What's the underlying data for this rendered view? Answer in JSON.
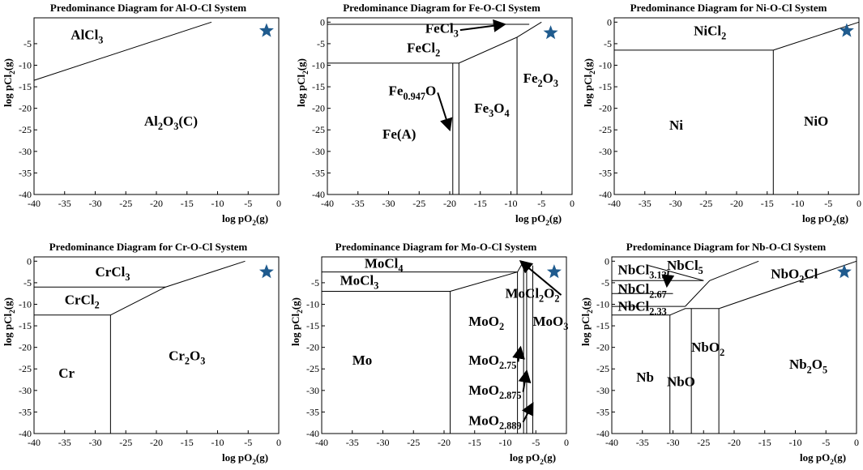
{
  "chart_data": [
    {
      "type": "predominance",
      "title": "Predominance Diagram for Al-O-Cl System",
      "xlabel": [
        "log pO",
        "2",
        "(g)"
      ],
      "ylabel": [
        "log pCl",
        "2",
        "(g)"
      ],
      "xlim": [
        -40,
        0
      ],
      "ylim": [
        -40,
        1
      ],
      "xticks": [
        -40,
        -35,
        -30,
        -25,
        -20,
        -15,
        -10,
        -5,
        0
      ],
      "yticks": [
        -5,
        -10,
        -15,
        -20,
        -25,
        -30,
        -35,
        -40
      ],
      "color": "#000000",
      "star": {
        "x": -2,
        "y": -2,
        "color": "#1f5b8e"
      },
      "boundaries": [
        {
          "x": [
            -40,
            -11
          ],
          "values": [
            -13.5,
            0
          ]
        }
      ],
      "labels": [
        {
          "text": [
            "AlCl",
            "3"
          ],
          "x": -34,
          "y": -4
        },
        {
          "text": [
            "Al",
            "2",
            "O",
            "3",
            "(C)"
          ],
          "x": -22,
          "y": -24
        }
      ]
    },
    {
      "type": "predominance",
      "title": "Predominance Diagram for Fe-O-Cl System",
      "xlabel": [
        "log pO",
        "2",
        "(g)"
      ],
      "ylabel": [
        "log pCl",
        "2",
        "(g)"
      ],
      "xlim": [
        -40,
        0
      ],
      "ylim": [
        -40,
        1
      ],
      "xticks": [
        -40,
        -35,
        -30,
        -25,
        -20,
        -15,
        -10,
        -5,
        0
      ],
      "yticks": [
        0,
        -5,
        -10,
        -15,
        -20,
        -25,
        -30,
        -35,
        -40
      ],
      "color": "#000000",
      "star": {
        "x": -3.5,
        "y": -2.5,
        "color": "#1f5b8e"
      },
      "boundaries": [
        {
          "x": [
            -40,
            -7
          ],
          "values": [
            -0.5,
            -0.5
          ]
        },
        {
          "x": [
            -40,
            -19.5
          ],
          "values": [
            -9.5,
            -9.5
          ]
        },
        {
          "x": [
            -19.5,
            -19.5
          ],
          "values": [
            -9.5,
            -40
          ]
        },
        {
          "x": [
            -19.5,
            -18.5,
            -9,
            -5
          ],
          "values": [
            -9.5,
            -9.5,
            -3.5,
            0
          ]
        },
        {
          "x": [
            -18.5,
            -18.5
          ],
          "values": [
            -9.5,
            -40
          ]
        },
        {
          "x": [
            -9,
            -9
          ],
          "values": [
            -3.5,
            -40
          ]
        }
      ],
      "labels": [
        {
          "text": [
            "FeCl",
            "3"
          ],
          "x": -24,
          "y": -2.5,
          "arrow": [
            -11,
            -0.5
          ]
        },
        {
          "text": [
            "FeCl",
            "2"
          ],
          "x": -27,
          "y": -7
        },
        {
          "text": [
            "Fe",
            "0.947",
            "O"
          ],
          "x": -30,
          "y": -17,
          "arrow": [
            -20,
            -25
          ]
        },
        {
          "text": [
            "Fe",
            "3",
            "O",
            "4"
          ],
          "x": -16,
          "y": -21
        },
        {
          "text": [
            "Fe",
            "2",
            "O",
            "3"
          ],
          "x": -8,
          "y": -14
        },
        {
          "text": [
            "Fe(A)"
          ],
          "x": -31,
          "y": -27
        }
      ]
    },
    {
      "type": "predominance",
      "title": "Predominance Diagram for Ni-O-Cl System",
      "xlabel": [
        "log pO",
        "2",
        "(g)"
      ],
      "ylabel": [
        "log pCl",
        "2",
        "(g)"
      ],
      "xlim": [
        -40,
        0
      ],
      "ylim": [
        -40,
        1
      ],
      "xticks": [
        -40,
        -35,
        -30,
        -25,
        -20,
        -15,
        -10,
        -5,
        0
      ],
      "yticks": [
        0,
        -5,
        -10,
        -15,
        -20,
        -25,
        -30,
        -35,
        -40
      ],
      "color": "#000000",
      "star": {
        "x": -2,
        "y": -2,
        "color": "#1f5b8e"
      },
      "boundaries": [
        {
          "x": [
            -40,
            -14
          ],
          "values": [
            -6.5,
            -6.5
          ]
        },
        {
          "x": [
            -14,
            -14
          ],
          "values": [
            -6.5,
            -40
          ]
        },
        {
          "x": [
            -14,
            0
          ],
          "values": [
            -6.5,
            0
          ]
        }
      ],
      "labels": [
        {
          "text": [
            "NiCl",
            "2"
          ],
          "x": -27,
          "y": -3
        },
        {
          "text": [
            "Ni"
          ],
          "x": -31,
          "y": -25
        },
        {
          "text": [
            "NiO"
          ],
          "x": -9,
          "y": -24
        }
      ]
    },
    {
      "type": "predominance",
      "title": "Predominance Diagram for Cr-O-Cl System",
      "xlabel": [
        "log pO",
        "2",
        "(g)"
      ],
      "ylabel": [
        "log pCl",
        "2",
        "(g)"
      ],
      "xlim": [
        -40,
        0
      ],
      "ylim": [
        -40,
        1
      ],
      "xticks": [
        -40,
        -35,
        -30,
        -25,
        -20,
        -15,
        -10,
        -5,
        0
      ],
      "yticks": [
        0,
        -5,
        -10,
        -15,
        -20,
        -25,
        -30,
        -35,
        -40
      ],
      "color": "#000000",
      "star": {
        "x": -2,
        "y": -2.5,
        "color": "#1f5b8e"
      },
      "boundaries": [
        {
          "x": [
            -40,
            -18.5
          ],
          "values": [
            -6,
            -6
          ]
        },
        {
          "x": [
            -40,
            -27.5
          ],
          "values": [
            -12.5,
            -12.5
          ]
        },
        {
          "x": [
            -27.5,
            -27.5
          ],
          "values": [
            -12.5,
            -40
          ]
        },
        {
          "x": [
            -27.5,
            -18.5,
            -5.5
          ],
          "values": [
            -12.5,
            -6,
            0
          ]
        }
      ],
      "labels": [
        {
          "text": [
            "CrCl",
            "3"
          ],
          "x": -30,
          "y": -3.5
        },
        {
          "text": [
            "CrCl",
            "2"
          ],
          "x": -35,
          "y": -10
        },
        {
          "text": [
            "Cr"
          ],
          "x": -36,
          "y": -27
        },
        {
          "text": [
            "Cr",
            "2",
            "O",
            "3"
          ],
          "x": -18,
          "y": -23
        }
      ]
    },
    {
      "type": "predominance",
      "title": "Predominance Diagram for Mo-O-Cl System",
      "xlabel": [
        "log pO",
        "2",
        "(g)"
      ],
      "ylabel": [
        "log pCl",
        "2",
        "(g)"
      ],
      "xlim": [
        -40,
        0
      ],
      "ylim": [
        -40,
        1
      ],
      "xticks": [
        -40,
        -35,
        -30,
        -25,
        -20,
        -15,
        -10,
        -5,
        0
      ],
      "yticks": [
        -5,
        -10,
        -15,
        -20,
        -25,
        -30,
        -35,
        -40
      ],
      "color": "#000000",
      "star": {
        "x": -2,
        "y": -2.5,
        "color": "#1f5b8e"
      },
      "boundaries": [
        {
          "x": [
            -40,
            -8
          ],
          "values": [
            -2.5,
            -2.5
          ]
        },
        {
          "x": [
            -40,
            -19
          ],
          "values": [
            -7,
            -7
          ]
        },
        {
          "x": [
            -19,
            -19
          ],
          "values": [
            -7,
            -40
          ]
        },
        {
          "x": [
            -19,
            -8,
            -7
          ],
          "values": [
            -7,
            -2.5,
            0
          ]
        },
        {
          "x": [
            -8,
            -8
          ],
          "values": [
            -2.5,
            -40
          ]
        },
        {
          "x": [
            -7,
            -7
          ],
          "values": [
            -1,
            -40
          ]
        },
        {
          "x": [
            -6.5,
            -6.5
          ],
          "values": [
            -1,
            -40
          ]
        },
        {
          "x": [
            -5.5,
            -5.5
          ],
          "values": [
            -1,
            -40
          ]
        }
      ],
      "labels": [
        {
          "text": [
            "MoCl",
            "4"
          ],
          "x": -33,
          "y": -1.5
        },
        {
          "text": [
            "MoCl",
            "3"
          ],
          "x": -37,
          "y": -5.5
        },
        {
          "text": [
            "MoCl",
            "2",
            "O",
            "2"
          ],
          "x": -10,
          "y": -8.5,
          "arrow": [
            -7.5,
            0
          ]
        },
        {
          "text": [
            "MoO",
            "2"
          ],
          "x": -16,
          "y": -15
        },
        {
          "text": [
            "MoO",
            "3"
          ],
          "x": -5.5,
          "y": -15
        },
        {
          "text": [
            "Mo"
          ],
          "x": -35,
          "y": -24
        },
        {
          "text": [
            "MoO",
            "2.75"
          ],
          "x": -16,
          "y": -24,
          "arrow": [
            -7.5,
            -20
          ]
        },
        {
          "text": [
            "MoO",
            "2.875"
          ],
          "x": -16,
          "y": -31,
          "arrow": [
            -6.5,
            -25.5
          ]
        },
        {
          "text": [
            "MoO",
            "2.889"
          ],
          "x": -16,
          "y": -38,
          "arrow": [
            -5.5,
            -33
          ]
        }
      ]
    },
    {
      "type": "predominance",
      "title": "Predominance Diagram for Nb-O-Cl System",
      "xlabel": [
        "log pO",
        "2",
        "(g)"
      ],
      "ylabel": [
        "log pCl",
        "2",
        "(g)"
      ],
      "xlim": [
        -40,
        0
      ],
      "ylim": [
        -40,
        1
      ],
      "xticks": [
        -40,
        -35,
        -30,
        -25,
        -20,
        -15,
        -10,
        -5,
        0
      ],
      "yticks": [
        0,
        -5,
        -10,
        -15,
        -20,
        -25,
        -30,
        -35,
        -40
      ],
      "color": "#000000",
      "star": {
        "x": -2,
        "y": -2.5,
        "color": "#1f5b8e"
      },
      "boundaries": [
        {
          "x": [
            -40,
            -25
          ],
          "values": [
            -4.5,
            -4.5
          ]
        },
        {
          "x": [
            -40,
            -30
          ],
          "values": [
            -7.5,
            -7.5
          ]
        },
        {
          "x": [
            -40,
            -28
          ],
          "values": [
            -10.5,
            -10.5
          ]
        },
        {
          "x": [
            -40,
            -30.5
          ],
          "values": [
            -12.5,
            -12.5
          ]
        },
        {
          "x": [
            -30.5,
            -30.5
          ],
          "values": [
            -12.5,
            -40
          ]
        },
        {
          "x": [
            -30.5,
            -28,
            -22.5
          ],
          "values": [
            -12.5,
            -11,
            -11
          ]
        },
        {
          "x": [
            -27,
            -27
          ],
          "values": [
            -11,
            -40
          ]
        },
        {
          "x": [
            -22.5,
            -22.5
          ],
          "values": [
            -11,
            -40
          ]
        },
        {
          "x": [
            -22.5,
            0
          ],
          "values": [
            -11,
            0
          ]
        },
        {
          "x": [
            -28,
            -24,
            -16
          ],
          "values": [
            -10.5,
            -4.5,
            0
          ]
        },
        {
          "x": [
            -34,
            -25
          ],
          "values": [
            -1,
            -4.5
          ]
        }
      ],
      "labels": [
        {
          "text": [
            "NbCl",
            "3.13"
          ],
          "x": -39,
          "y": -3,
          "arrow": [
            -31,
            -5.8
          ]
        },
        {
          "text": [
            "NbCl",
            "5"
          ],
          "x": -31,
          "y": -2
        },
        {
          "text": [
            "NbO",
            "2",
            "Cl"
          ],
          "x": -14,
          "y": -4
        },
        {
          "text": [
            "NbCl",
            "2.67"
          ],
          "x": -39,
          "y": -7.5
        },
        {
          "text": [
            "NbCl",
            "2.33"
          ],
          "x": -39,
          "y": -11.5
        },
        {
          "text": [
            "NbO",
            "2"
          ],
          "x": -27,
          "y": -21
        },
        {
          "text": [
            "Nb"
          ],
          "x": -36,
          "y": -28
        },
        {
          "text": [
            "NbO"
          ],
          "x": -31,
          "y": -29
        },
        {
          "text": [
            "Nb",
            "2",
            "O",
            "5"
          ],
          "x": -11,
          "y": -25
        }
      ]
    }
  ]
}
